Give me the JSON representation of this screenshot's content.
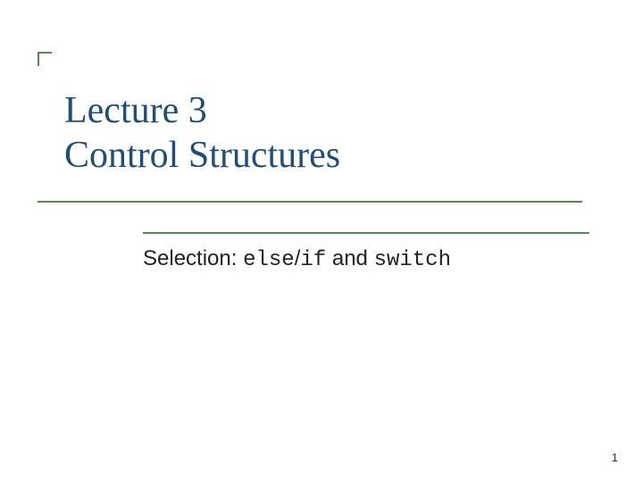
{
  "slide": {
    "title_line1": "Lecture 3",
    "title_line2": "Control Structures",
    "title_color": "#1f4e79",
    "title_fontsize": 42,
    "subtitle_prefix": "Selection: ",
    "subtitle_code1": "else",
    "subtitle_sep": "/",
    "subtitle_code2": "if",
    "subtitle_mid": " and ",
    "subtitle_code3": "switch",
    "subtitle_color": "#222222",
    "subtitle_fontsize": 24,
    "accent_color": "#5a8a4a",
    "underline_width": 610,
    "page_number": "1",
    "page_number_color": "#333333",
    "background_color": "#ffffff"
  }
}
